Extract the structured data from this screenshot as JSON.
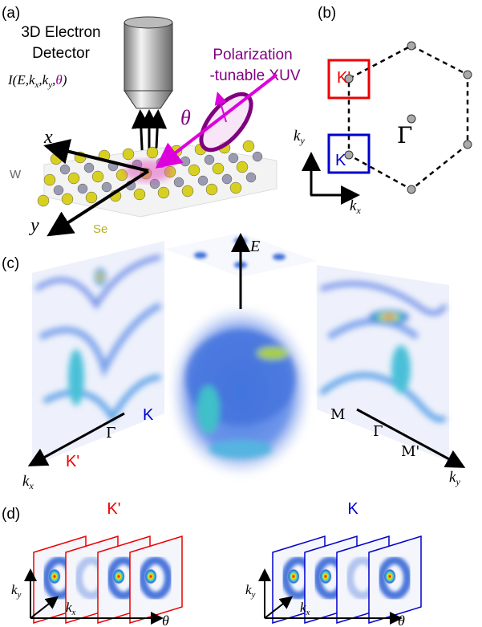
{
  "panel_a": {
    "label": "(a)",
    "detector": [
      "3D Electron",
      "Detector"
    ],
    "source": [
      "Polarization",
      "-tunable XUV"
    ],
    "intensity": [
      "I(E,",
      "k",
      "x",
      ",",
      "k",
      "y",
      ",",
      "θ",
      ")"
    ],
    "theta": "θ",
    "axis_x": "x",
    "axis_y": "y",
    "atom_w": "W",
    "atom_se": "Se"
  },
  "panel_b": {
    "label": "(b)",
    "k_prime": "K'",
    "k": "K",
    "gamma": "Γ",
    "ky": [
      "k",
      "y"
    ],
    "kx": [
      "k",
      "x"
    ]
  },
  "panel_c": {
    "label": "(c)",
    "e_axis": "E",
    "k": "K",
    "gamma_left": "Γ",
    "k_prime": "K'",
    "kx": [
      "k",
      "x"
    ],
    "m": "M",
    "gamma_right": "Γ",
    "m_prime": "M'",
    "ky": [
      "k",
      "y"
    ]
  },
  "panel_d": {
    "label": "(d)",
    "left_title": "K'",
    "right_title": "K",
    "left_ky": [
      "k",
      "y"
    ],
    "left_kx": [
      "k",
      "x"
    ],
    "left_theta": "θ",
    "right_ky": [
      "k",
      "y"
    ],
    "right_kx": [
      "k",
      "x"
    ],
    "right_theta": "θ"
  }
}
